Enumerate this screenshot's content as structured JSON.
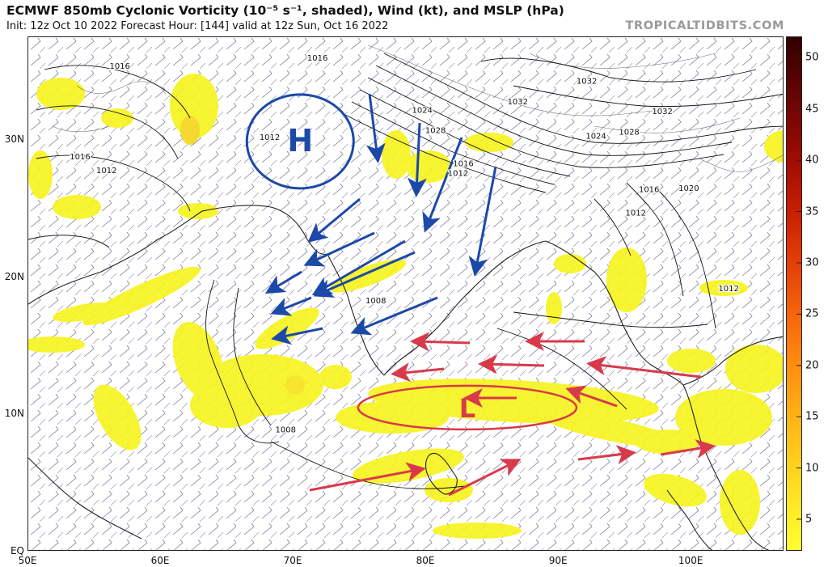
{
  "title": "ECMWF 850mb Cyclonic Vorticity (10⁻⁵ s⁻¹, shaded), Wind (kt), and MSLP (hPa)",
  "subtitle": "Init: 12z Oct 10 2022   Forecast Hour: [144]   valid at 12z Sun, Oct 16 2022",
  "brand": "TROPICALTIDBITS.COM",
  "map": {
    "region": "North Indian Ocean",
    "lon_range": [
      50,
      107
    ],
    "lat_range": [
      0,
      37.5
    ],
    "lat_labels": [
      {
        "lat": 30,
        "text": "30N"
      },
      {
        "lat": 20,
        "text": "20N"
      },
      {
        "lat": 10,
        "text": "10N"
      },
      {
        "lat": 0,
        "text": "EQ"
      }
    ],
    "lon_labels": [
      {
        "lon": 50,
        "text": "50E"
      },
      {
        "lon": 60,
        "text": "60E"
      },
      {
        "lon": 70,
        "text": "70E"
      },
      {
        "lon": 80,
        "text": "80E"
      },
      {
        "lon": 90,
        "text": "90E"
      },
      {
        "lon": 100,
        "text": "100E"
      }
    ],
    "isobar_labels": [
      {
        "text": "1016",
        "lon": 56.9,
        "lat": 35.2
      },
      {
        "text": "1016",
        "lon": 71.8,
        "lat": 35.8
      },
      {
        "text": "1012",
        "lon": 68.2,
        "lat": 30.0
      },
      {
        "text": "1016",
        "lon": 53.9,
        "lat": 28.6
      },
      {
        "text": "1012",
        "lon": 55.9,
        "lat": 27.6
      },
      {
        "text": "1024",
        "lon": 79.7,
        "lat": 32.0
      },
      {
        "text": "1028",
        "lon": 80.7,
        "lat": 30.5
      },
      {
        "text": "1032",
        "lon": 86.9,
        "lat": 32.6
      },
      {
        "text": "1032",
        "lon": 92.1,
        "lat": 34.1
      },
      {
        "text": "1032",
        "lon": 97.8,
        "lat": 31.9
      },
      {
        "text": "1024",
        "lon": 92.8,
        "lat": 30.1
      },
      {
        "text": "1028",
        "lon": 95.3,
        "lat": 30.4
      },
      {
        "text": "1016",
        "lon": 82.8,
        "lat": 28.1
      },
      {
        "text": "1012",
        "lon": 82.4,
        "lat": 27.4
      },
      {
        "text": "1016",
        "lon": 96.8,
        "lat": 26.2
      },
      {
        "text": "1020",
        "lon": 99.8,
        "lat": 26.3
      },
      {
        "text": "1012",
        "lon": 95.8,
        "lat": 24.5
      },
      {
        "text": "1008",
        "lon": 76.2,
        "lat": 18.1
      },
      {
        "text": "1012",
        "lon": 102.8,
        "lat": 19.0
      },
      {
        "text": "1008",
        "lon": 69.4,
        "lat": 8.7
      }
    ],
    "annotations": [
      {
        "type": "circle",
        "label": "H",
        "color": "#1c49a8",
        "lon": 70.5,
        "lat": 29.9
      },
      {
        "type": "ellipse",
        "label": "L",
        "color": "#d83a4a",
        "lon": 83.1,
        "lat": 10.5
      }
    ]
  },
  "colorbar": {
    "ticks": [
      5,
      10,
      15,
      20,
      25,
      30,
      35,
      40,
      45,
      50
    ],
    "min": 2,
    "max": 52,
    "stops": [
      {
        "v": 2,
        "color": "#ffff33"
      },
      {
        "v": 5,
        "color": "#ffef2a"
      },
      {
        "v": 10,
        "color": "#ffd31f"
      },
      {
        "v": 15,
        "color": "#ffb216"
      },
      {
        "v": 20,
        "color": "#ff8d10"
      },
      {
        "v": 25,
        "color": "#f5650b"
      },
      {
        "v": 30,
        "color": "#e33f07"
      },
      {
        "v": 35,
        "color": "#c81f04"
      },
      {
        "v": 40,
        "color": "#a00c04"
      },
      {
        "v": 45,
        "color": "#730504"
      },
      {
        "v": 50,
        "color": "#450202"
      },
      {
        "v": 52,
        "color": "#300101"
      }
    ]
  },
  "colors": {
    "vorticity": "#f7f31f",
    "land_outline": "#222222",
    "isobar": "#111111",
    "barb": "#7c7c9c",
    "blue_arrow": "#1c49a8",
    "red_arrow": "#d83a4a"
  }
}
